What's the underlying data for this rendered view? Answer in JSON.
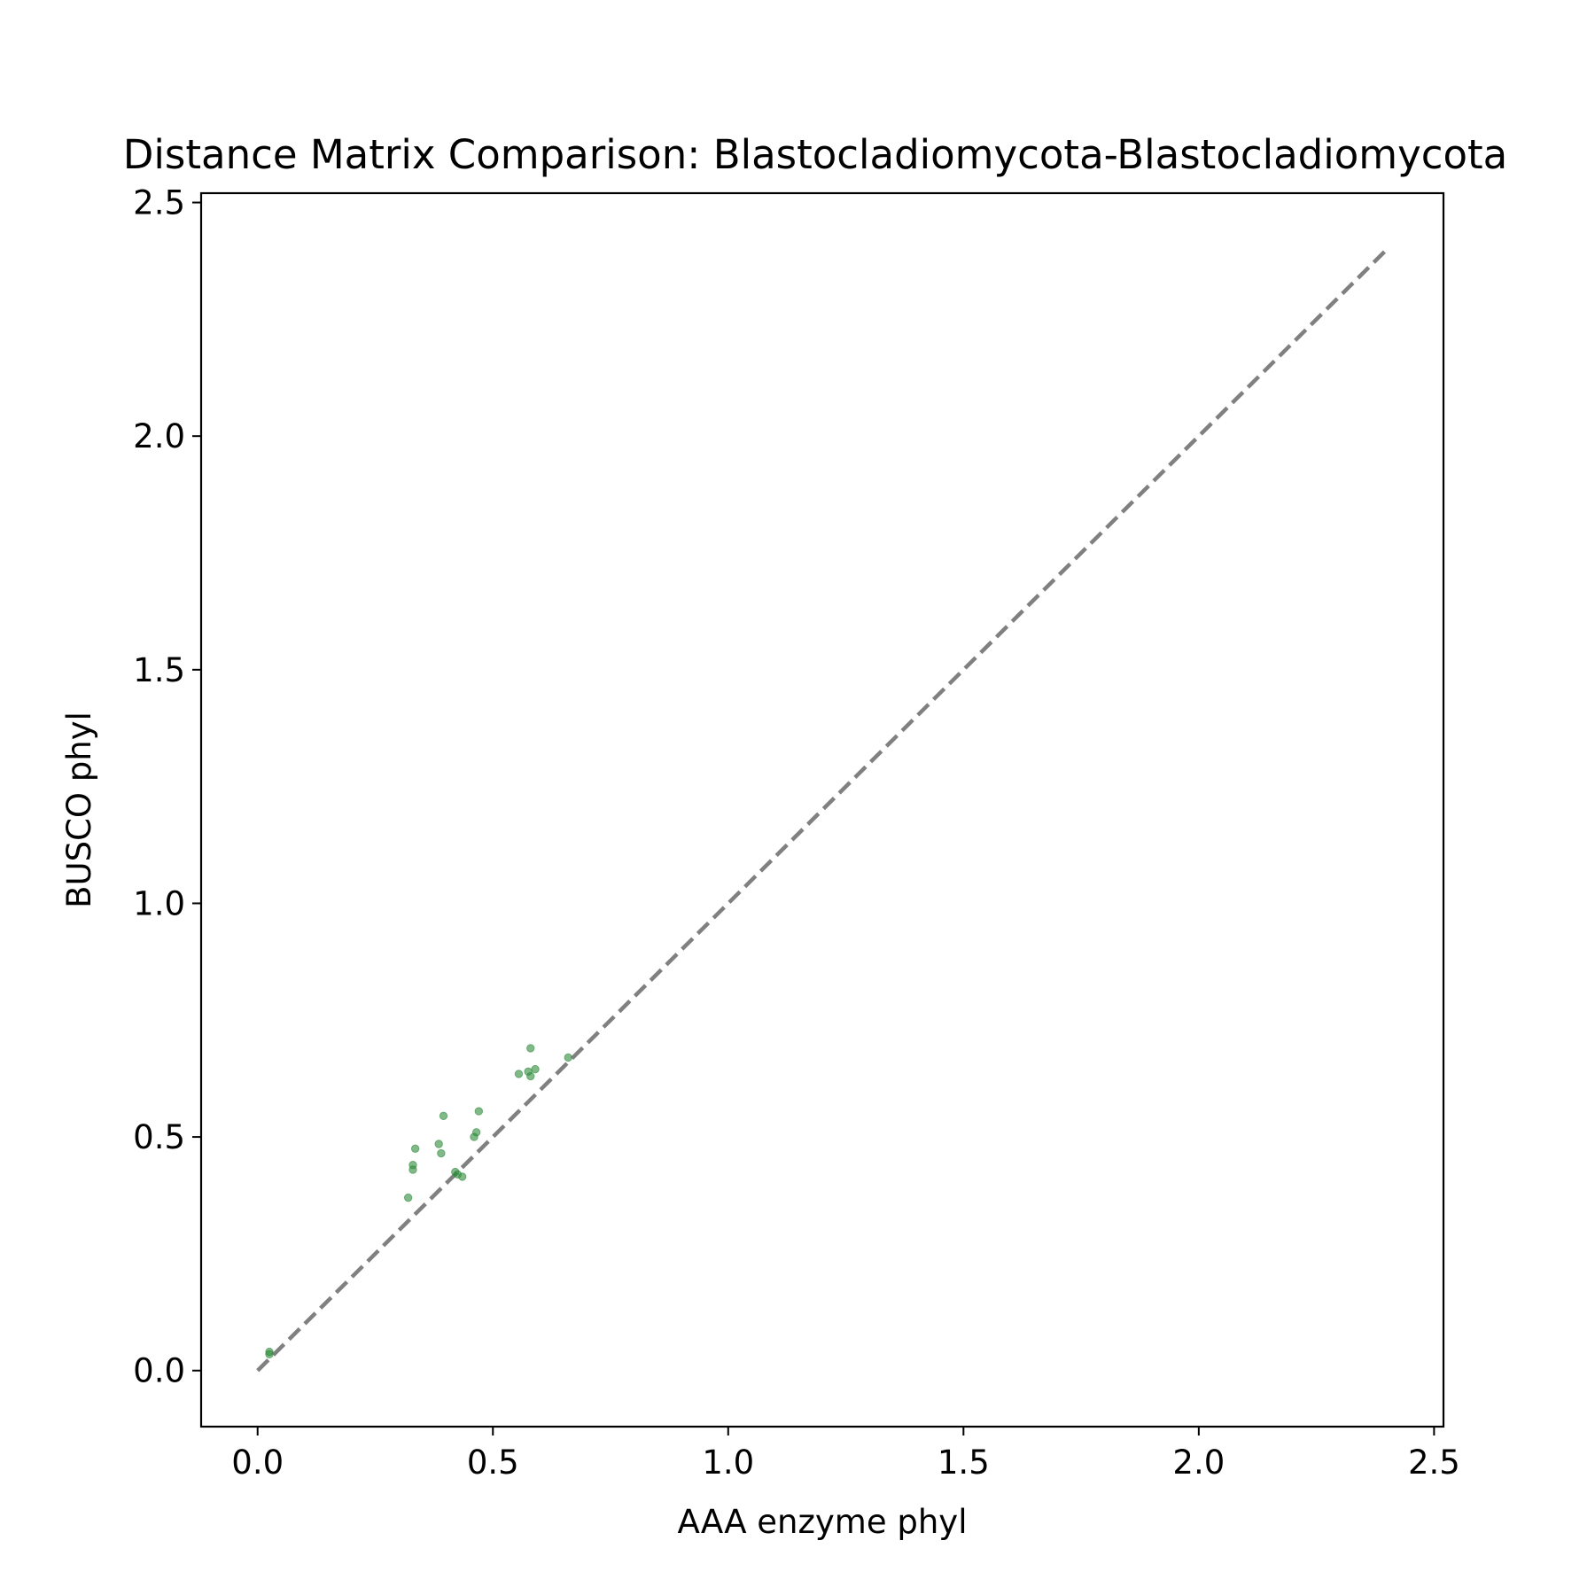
{
  "chart_data": {
    "type": "scatter",
    "title": "Distance Matrix Comparison: Blastocladiomycota-Blastocladiomycota",
    "xlabel": "AAA enzyme phyl",
    "ylabel": "BUSCO phyl",
    "xlim": [
      -0.12,
      2.52
    ],
    "ylim": [
      -0.12,
      2.52
    ],
    "xticks": [
      0.0,
      0.5,
      1.0,
      1.5,
      2.0,
      2.5
    ],
    "yticks": [
      0.0,
      0.5,
      1.0,
      1.5,
      2.0,
      2.5
    ],
    "xtick_labels": [
      "0.0",
      "0.5",
      "1.0",
      "1.5",
      "2.0",
      "2.5"
    ],
    "ytick_labels": [
      "0.0",
      "0.5",
      "1.0",
      "1.5",
      "2.0",
      "2.5"
    ],
    "grid": false,
    "legend": "none",
    "marker_color": "#2e8b3a",
    "reference_line": {
      "x": [
        0.0,
        2.4
      ],
      "y": [
        0.0,
        2.4
      ],
      "style": "dashed",
      "color": "#808080"
    },
    "series": [
      {
        "points": [
          {
            "x": 0.025,
            "y": 0.04
          },
          {
            "x": 0.025,
            "y": 0.035
          },
          {
            "x": 0.32,
            "y": 0.37
          },
          {
            "x": 0.33,
            "y": 0.43
          },
          {
            "x": 0.33,
            "y": 0.44
          },
          {
            "x": 0.335,
            "y": 0.475
          },
          {
            "x": 0.385,
            "y": 0.485
          },
          {
            "x": 0.39,
            "y": 0.465
          },
          {
            "x": 0.395,
            "y": 0.545
          },
          {
            "x": 0.42,
            "y": 0.425
          },
          {
            "x": 0.425,
            "y": 0.42
          },
          {
            "x": 0.435,
            "y": 0.415
          },
          {
            "x": 0.46,
            "y": 0.5
          },
          {
            "x": 0.465,
            "y": 0.51
          },
          {
            "x": 0.47,
            "y": 0.555
          },
          {
            "x": 0.555,
            "y": 0.635
          },
          {
            "x": 0.575,
            "y": 0.64
          },
          {
            "x": 0.58,
            "y": 0.63
          },
          {
            "x": 0.58,
            "y": 0.69
          },
          {
            "x": 0.59,
            "y": 0.645
          },
          {
            "x": 0.66,
            "y": 0.67
          }
        ]
      }
    ]
  }
}
